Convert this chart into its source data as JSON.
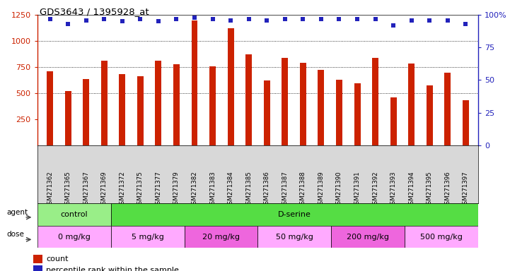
{
  "title": "GDS3643 / 1395928_at",
  "samples": [
    "GSM271362",
    "GSM271365",
    "GSM271367",
    "GSM271369",
    "GSM271372",
    "GSM271375",
    "GSM271377",
    "GSM271379",
    "GSM271382",
    "GSM271383",
    "GSM271384",
    "GSM271385",
    "GSM271386",
    "GSM271387",
    "GSM271388",
    "GSM271389",
    "GSM271390",
    "GSM271391",
    "GSM271392",
    "GSM271393",
    "GSM271394",
    "GSM271395",
    "GSM271396",
    "GSM271397"
  ],
  "counts": [
    710,
    520,
    635,
    810,
    685,
    660,
    810,
    775,
    1195,
    760,
    1120,
    870,
    620,
    840,
    790,
    720,
    625,
    595,
    835,
    460,
    785,
    575,
    695,
    435
  ],
  "percentiles": [
    97,
    93,
    96,
    97,
    95,
    97,
    95,
    97,
    98,
    97,
    96,
    97,
    96,
    97,
    97,
    97,
    97,
    97,
    97,
    92,
    96,
    96,
    96,
    93
  ],
  "bar_color": "#CC2200",
  "dot_color": "#2222BB",
  "ylim_left": [
    0,
    1250
  ],
  "ylim_right": [
    0,
    100
  ],
  "yticks_left": [
    250,
    500,
    750,
    1000,
    1250
  ],
  "yticks_right": [
    0,
    25,
    50,
    75,
    100
  ],
  "ytick_right_labels": [
    "0",
    "25",
    "50",
    "75",
    "100%"
  ],
  "grid_values": [
    500,
    750,
    1000
  ],
  "agent_groups": [
    {
      "label": "control",
      "start": 0,
      "end": 4,
      "color": "#99EE88"
    },
    {
      "label": "D-serine",
      "start": 4,
      "end": 24,
      "color": "#55DD44"
    }
  ],
  "dose_groups": [
    {
      "label": "0 mg/kg",
      "start": 0,
      "end": 4,
      "color": "#FFAAFF"
    },
    {
      "label": "5 mg/kg",
      "start": 4,
      "end": 8,
      "color": "#FFAAFF"
    },
    {
      "label": "20 mg/kg",
      "start": 8,
      "end": 12,
      "color": "#EE66DD"
    },
    {
      "label": "50 mg/kg",
      "start": 12,
      "end": 16,
      "color": "#FFAAFF"
    },
    {
      "label": "200 mg/kg",
      "start": 16,
      "end": 20,
      "color": "#EE66DD"
    },
    {
      "label": "500 mg/kg",
      "start": 20,
      "end": 24,
      "color": "#FFAAFF"
    }
  ]
}
